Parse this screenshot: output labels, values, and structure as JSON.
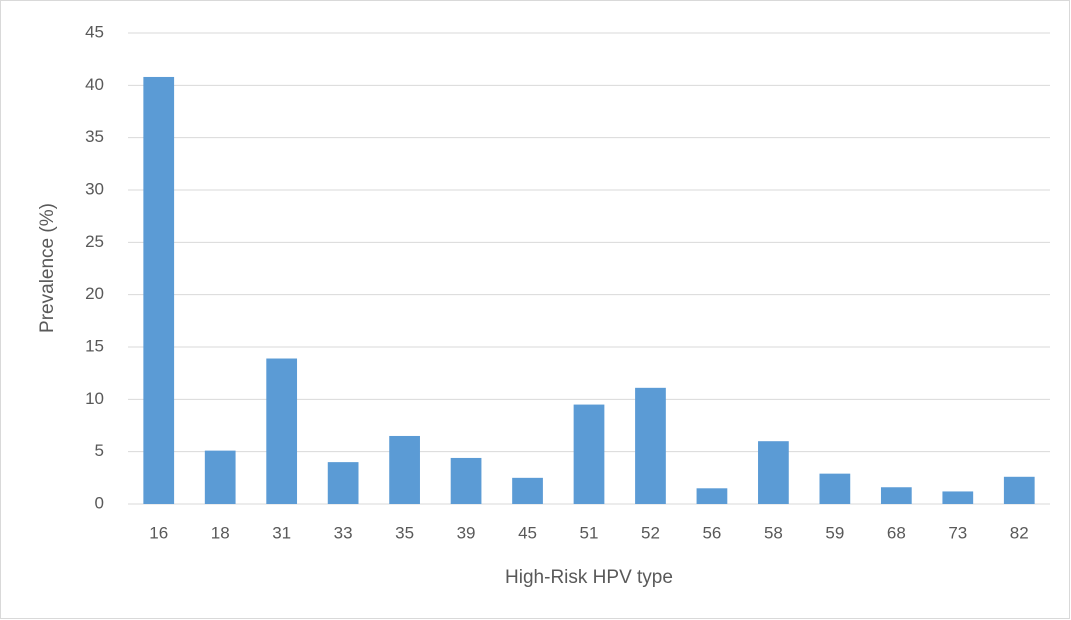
{
  "chart_data": {
    "type": "bar",
    "x_label": "High-Risk HPV type",
    "y_label": "Prevalence (%)",
    "categories": [
      "16",
      "18",
      "31",
      "33",
      "35",
      "39",
      "45",
      "51",
      "52",
      "56",
      "58",
      "59",
      "68",
      "73",
      "82"
    ],
    "values": [
      40.8,
      5.1,
      13.9,
      4.0,
      6.5,
      4.4,
      2.5,
      9.5,
      11.1,
      1.5,
      6.0,
      2.9,
      1.6,
      1.2,
      2.6
    ],
    "color": "#5b9bd5",
    "ylim": [
      0,
      45
    ],
    "yticks": [
      0,
      5,
      10,
      15,
      20,
      25,
      30,
      35,
      40,
      45
    ],
    "grid": true
  }
}
